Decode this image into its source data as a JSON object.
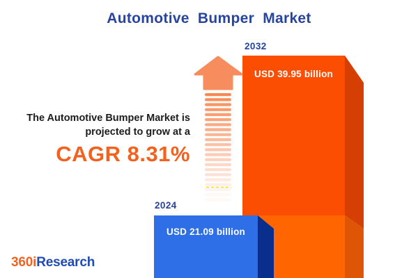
{
  "header": {
    "title": "Automotive Bumper Market"
  },
  "annotation": {
    "line1": "The Automotive Bumper Market is",
    "line2": "projected to grow at a",
    "cagr_label": "CAGR 8.31%"
  },
  "logo": {
    "part1": "360i",
    "part2": "Research"
  },
  "chart_data": {
    "type": "bar",
    "title": "Automotive Bumper Market",
    "categories": [
      "2024",
      "2032"
    ],
    "values": [
      21.09,
      39.95
    ],
    "unit": "USD billion",
    "cagr_percent": 8.31,
    "orientation": "vertical",
    "legend": "none",
    "grid": false,
    "style": "3d-infographic-with-growth-arrow",
    "bars": [
      {
        "year": "2024",
        "value": 21.09,
        "label": "USD 21.09 billion",
        "face_color": "#2E6FE7",
        "side_color": "#0A2E8C"
      },
      {
        "year": "2032",
        "value": 39.95,
        "label": "USD 39.95 billion",
        "face_color": "#FB4E03",
        "side_color": "#D63F03"
      }
    ]
  },
  "colors": {
    "background": "#FFFFFF",
    "title_blue": "#27449E",
    "year_blue": "#25429E",
    "text_dark": "#1C1C1C",
    "cagr_orange": "#F4601D",
    "bar_2024_face": "#2E6FE7",
    "bar_2024_side": "#0A2E8C",
    "bar_2032_face_top": "#FB4E03",
    "bar_2032_side_top": "#D63F03",
    "bar_2032_face_bottom": "#FF6602",
    "bar_2032_side_bottom": "#DE5506",
    "arrow_head": "#F78C5E",
    "arrow_stripe": "#F8824A",
    "dash_yellow": "#F2E400",
    "logo_orange": "#F26322",
    "logo_blue": "#1E4CB5"
  }
}
